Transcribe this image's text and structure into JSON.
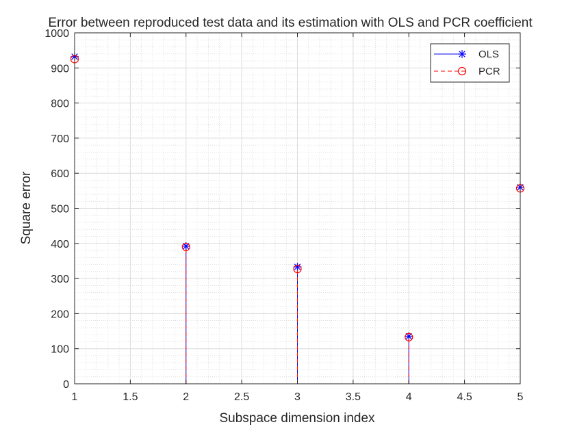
{
  "chart_data": {
    "type": "stem",
    "title": "Error between reproduced test data and its estimation with OLS and PCR coefficient",
    "xlabel": "Subspace dimension index",
    "ylabel": "Square error",
    "xlim": [
      1,
      5
    ],
    "ylim": [
      0,
      1000
    ],
    "x_ticks": [
      1,
      1.5,
      2,
      2.5,
      3,
      3.5,
      4,
      4.5,
      5
    ],
    "x_tick_labels": [
      "1",
      "1.5",
      "2",
      "2.5",
      "3",
      "3.5",
      "4",
      "4.5",
      "5"
    ],
    "y_ticks": [
      0,
      100,
      200,
      300,
      400,
      500,
      600,
      700,
      800,
      900,
      1000
    ],
    "y_tick_labels": [
      "0",
      "100",
      "200",
      "300",
      "400",
      "500",
      "600",
      "700",
      "800",
      "900",
      "1000"
    ],
    "grid": true,
    "minor_grid": true,
    "legend_position": "top-right",
    "x": [
      1,
      2,
      3,
      4,
      5
    ],
    "series": [
      {
        "name": "OLS",
        "values": [
          932,
          392,
          333,
          135,
          560
        ],
        "color": "#0000ff",
        "line_style": "solid",
        "marker": "asterisk"
      },
      {
        "name": "PCR",
        "values": [
          925,
          390,
          327,
          133,
          557
        ],
        "color": "#ff0000",
        "line_style": "dashed",
        "marker": "circle"
      }
    ]
  }
}
